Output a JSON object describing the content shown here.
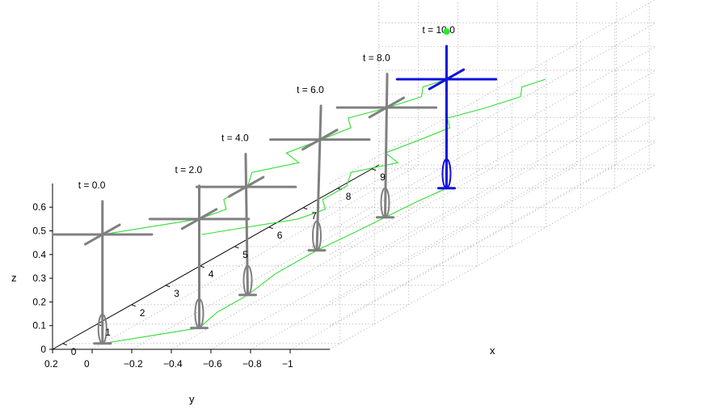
{
  "chart_data": {
    "type": "line",
    "title": "",
    "xlabel": "x",
    "ylabel": "y",
    "zlabel": "z",
    "x_ticks": [
      "0",
      "1",
      "2",
      "3",
      "4",
      "5",
      "6",
      "7",
      "8",
      "9"
    ],
    "y_ticks": [
      "0.2",
      "0",
      "−0.2",
      "−0.4",
      "−0.6",
      "−0.8",
      "−1"
    ],
    "z_ticks": [
      "0",
      "0.1",
      "0.2",
      "0.3",
      "0.4",
      "0.5",
      "0.6"
    ],
    "xlim": [
      -0.3,
      9.2
    ],
    "ylim": [
      0.2,
      -1.2
    ],
    "zlim": [
      0,
      0.7
    ],
    "grid": true,
    "frames": [
      {
        "label": "t = 0.0",
        "x": 0.0,
        "y": 0.0,
        "tilt": 0.0
      },
      {
        "label": "t = 2.0",
        "x": 0.8,
        "y": -0.35,
        "tilt": 0.0
      },
      {
        "label": "t = 4.0",
        "x": 2.5,
        "y": -0.3,
        "tilt": -0.06
      },
      {
        "label": "t = 6.0",
        "x": 4.8,
        "y": -0.25,
        "tilt": 0.12
      },
      {
        "label": "t = 8.0",
        "x": 6.5,
        "y": -0.3,
        "tilt": 0.06
      },
      {
        "label": "t = 10.0",
        "x": 8.0,
        "y": -0.35,
        "tilt": 0.0
      }
    ],
    "ground_track": [
      [
        0.0,
        0.0
      ],
      [
        0.8,
        -0.35
      ],
      [
        1.6,
        -0.3
      ],
      [
        2.5,
        -0.3
      ],
      [
        3.6,
        -0.25
      ],
      [
        4.8,
        -0.25
      ],
      [
        5.7,
        -0.28
      ],
      [
        6.5,
        -0.3
      ],
      [
        7.3,
        -0.32
      ],
      [
        8.0,
        -0.35
      ]
    ],
    "top_track": [
      [
        0.0,
        0.0
      ],
      [
        0.8,
        -0.35
      ],
      [
        1.3,
        -0.4
      ],
      [
        1.8,
        -0.3
      ],
      [
        2.5,
        -0.3
      ],
      [
        3.2,
        -0.2
      ],
      [
        3.7,
        -0.35
      ],
      [
        4.2,
        -0.2
      ],
      [
        4.8,
        -0.25
      ],
      [
        5.5,
        -0.3
      ],
      [
        6.0,
        -0.2
      ],
      [
        6.5,
        -0.3
      ],
      [
        7.1,
        -0.38
      ],
      [
        7.6,
        -0.3
      ],
      [
        8.0,
        -0.35
      ]
    ],
    "pole_height": 0.6,
    "bar_height": 0.46,
    "bar_length": 0.5,
    "colors": {
      "trail": "#33dd33",
      "robot": "#808080",
      "current": "#1010dd",
      "marker": "#22ee22"
    }
  }
}
